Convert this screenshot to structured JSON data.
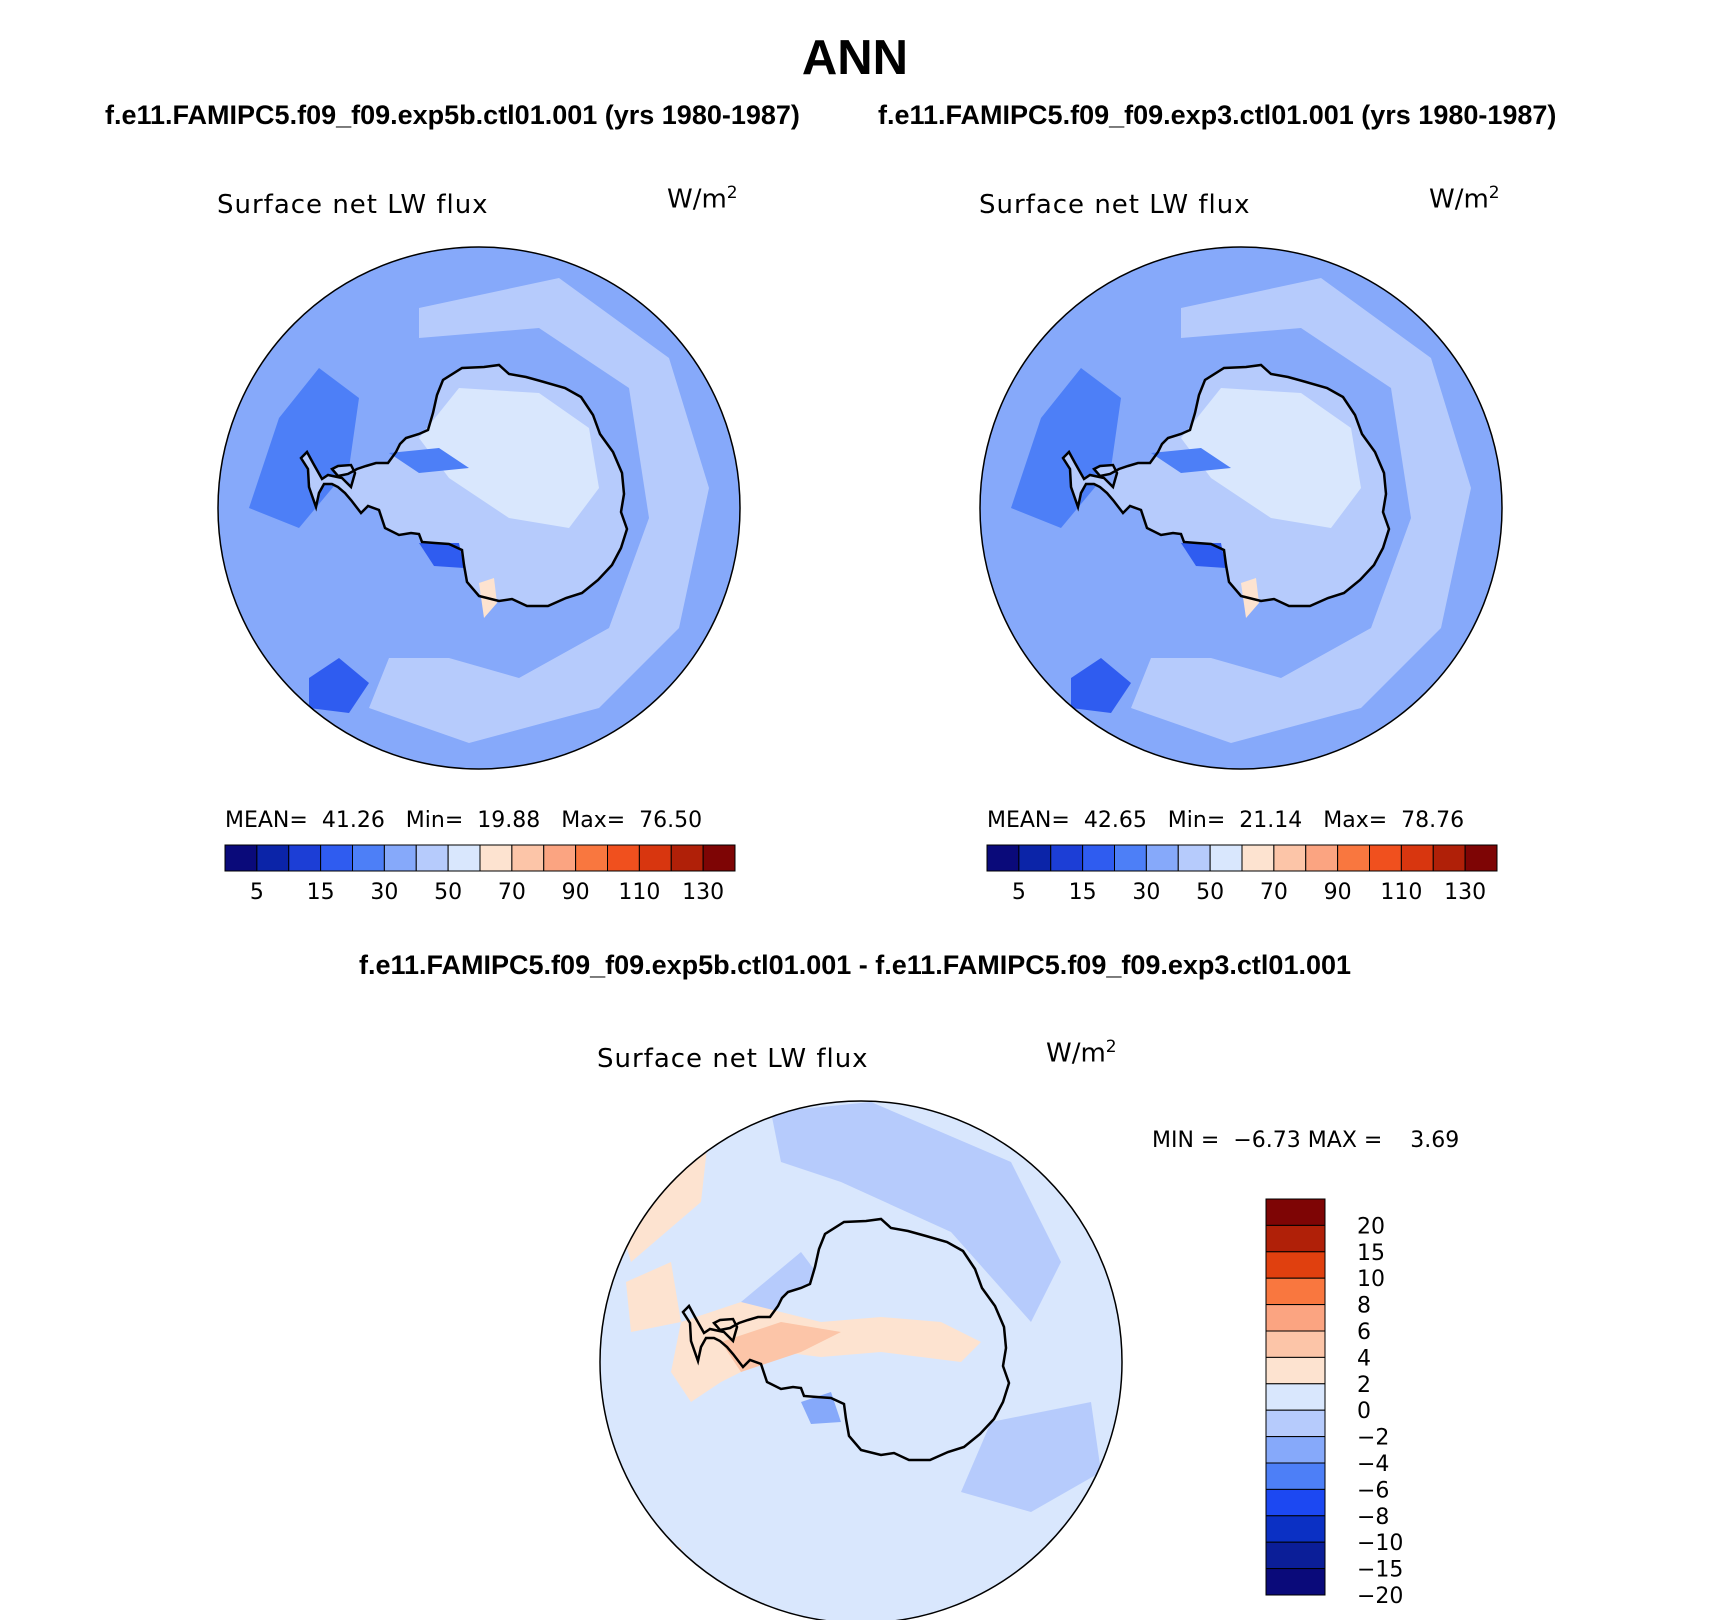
{
  "header": {
    "title": "ANN",
    "left_run": "f.e11.FAMIPC5.f09_f09.exp5b.ctl01.001 (yrs 1980-1987)",
    "right_run": "f.e11.FAMIPC5.f09_f09.exp3.ctl01.001 (yrs 1980-1987)",
    "diff_title": "f.e11.FAMIPC5.f09_f09.exp5b.ctl01.001 - f.e11.FAMIPC5.f09_f09.exp3.ctl01.001"
  },
  "panels": {
    "left": {
      "title": "Surface net LW flux",
      "units_base": "W/m",
      "units_exp": "2",
      "mean_label": "MEAN=",
      "mean": "41.26",
      "min_label": "Min=",
      "min": "19.88",
      "max_label": "Max=",
      "max": "76.50"
    },
    "right": {
      "title": "Surface net LW flux",
      "units_base": "W/m",
      "units_exp": "2",
      "mean_label": "MEAN=",
      "mean": "42.65",
      "min_label": "Min=",
      "min": "21.14",
      "max_label": "Max=",
      "max": "78.76"
    },
    "diff": {
      "title": "Surface net LW flux",
      "units_base": "W/m",
      "units_exp": "2",
      "min_label": "MIN =",
      "min": "−6.73",
      "max_label": "MAX =",
      "max": "3.69"
    }
  },
  "chart_data": [
    {
      "type": "heatmap",
      "projection": "south-polar-stereographic",
      "title": "Surface net LW flux",
      "units": "W/m2",
      "case": "f.e11.FAMIPC5.f09_f09.exp5b.ctl01.001 (yrs 1980-1987)",
      "stats": {
        "mean": 41.26,
        "min": 19.88,
        "max": 76.5
      },
      "colorbar": {
        "orientation": "horizontal",
        "tick_labels": [
          "5",
          "15",
          "30",
          "50",
          "70",
          "90",
          "110",
          "130"
        ],
        "colors": [
          "#0a0a7a",
          "#0b24a8",
          "#1c3ed6",
          "#2f5cf0",
          "#4d7ff7",
          "#86a9fa",
          "#b6cbfc",
          "#d9e7fd",
          "#fde3d0",
          "#fcc5a8",
          "#fba481",
          "#f9773f",
          "#f0501e",
          "#d8360f",
          "#b02008",
          "#7e0505"
        ]
      }
    },
    {
      "type": "heatmap",
      "projection": "south-polar-stereographic",
      "title": "Surface net LW flux",
      "units": "W/m2",
      "case": "f.e11.FAMIPC5.f09_f09.exp3.ctl01.001 (yrs 1980-1987)",
      "stats": {
        "mean": 42.65,
        "min": 21.14,
        "max": 78.76
      },
      "colorbar": {
        "orientation": "horizontal",
        "tick_labels": [
          "5",
          "15",
          "30",
          "50",
          "70",
          "90",
          "110",
          "130"
        ],
        "colors": [
          "#0a0a7a",
          "#0b24a8",
          "#1c3ed6",
          "#2f5cf0",
          "#4d7ff7",
          "#86a9fa",
          "#b6cbfc",
          "#d9e7fd",
          "#fde3d0",
          "#fcc5a8",
          "#fba481",
          "#f9773f",
          "#f0501e",
          "#d8360f",
          "#b02008",
          "#7e0505"
        ]
      }
    },
    {
      "type": "heatmap",
      "projection": "south-polar-stereographic",
      "title": "Surface net LW flux",
      "units": "W/m2",
      "case": "f.e11.FAMIPC5.f09_f09.exp5b.ctl01.001 - f.e11.FAMIPC5.f09_f09.exp3.ctl01.001",
      "stats": {
        "min": -6.73,
        "max": 3.69
      },
      "colorbar": {
        "orientation": "vertical",
        "tick_labels": [
          "20",
          "15",
          "10",
          "8",
          "6",
          "4",
          "2",
          "0",
          "−2",
          "−4",
          "−6",
          "−8",
          "−10",
          "−15",
          "−20"
        ],
        "colors": [
          "#7e0505",
          "#b02008",
          "#e0400f",
          "#f9773f",
          "#fba481",
          "#fcc5a8",
          "#fde3d0",
          "#d9e7fd",
          "#b6cbfc",
          "#86a9fa",
          "#4d7ff7",
          "#1c48f2",
          "#0b30c4",
          "#0b1e98",
          "#0a0a7a"
        ]
      }
    }
  ]
}
